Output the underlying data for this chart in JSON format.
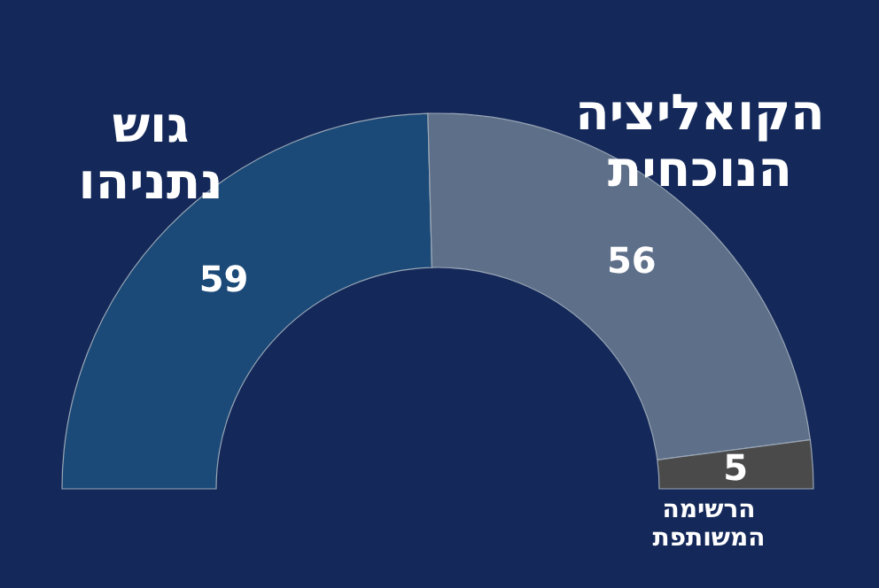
{
  "chart_data": {
    "type": "donut",
    "categories": [
      "גוש נתניהו",
      "הקואליציה הנוכחית",
      "הרשימה המשותפת"
    ],
    "values": [
      59,
      56,
      5
    ],
    "colors": [
      "#1b4a78",
      "#5e7089",
      "#4a4a4a"
    ],
    "data_labels": true,
    "legend": false
  }
}
